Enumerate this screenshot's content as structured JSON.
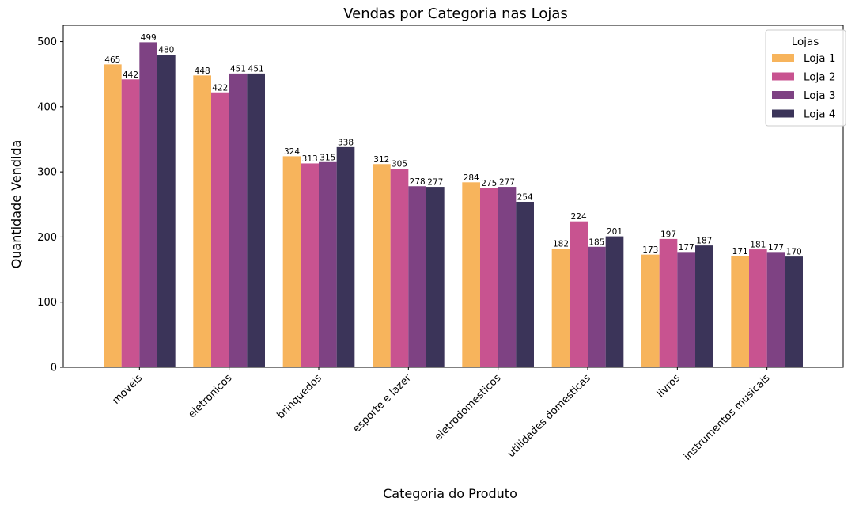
{
  "chart_data": {
    "type": "bar",
    "title": "Vendas por Categoria nas Lojas",
    "xlabel": "Categoria do Produto",
    "ylabel": "Quantidade Vendida",
    "categories": [
      "moveis",
      "eletronicos",
      "brinquedos",
      "esporte e lazer",
      "eletrodomesticos",
      "utilidades domesticas",
      "livros",
      "instrumentos musicais"
    ],
    "series": [
      {
        "name": "Loja 1",
        "color": "#f7b45c",
        "values": [
          465,
          448,
          324,
          312,
          284,
          182,
          173,
          171
        ]
      },
      {
        "name": "Loja 2",
        "color": "#c85390",
        "values": [
          442,
          422,
          313,
          305,
          275,
          224,
          197,
          181
        ]
      },
      {
        "name": "Loja 3",
        "color": "#7e4283",
        "values": [
          499,
          451,
          315,
          278,
          277,
          185,
          177,
          177
        ]
      },
      {
        "name": "Loja 4",
        "color": "#3b3459",
        "values": [
          480,
          451,
          338,
          277,
          254,
          201,
          187,
          170
        ]
      }
    ],
    "ylim": [
      0,
      525
    ],
    "yticks": [
      0,
      100,
      200,
      300,
      400,
      500
    ],
    "legend": {
      "title": "Lojas",
      "placement": "top-right"
    },
    "grid": false,
    "xtick_rotation": 45
  }
}
